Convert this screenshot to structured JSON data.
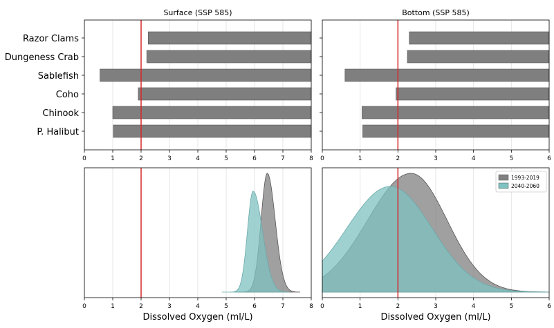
{
  "chart_data": [
    {
      "type": "bar",
      "orientation": "horizontal",
      "title": "Surface (SSP 585)",
      "categories": [
        "Razor Clams",
        "Dungeness Crab",
        "Sablefish",
        "Coho",
        "Chinook",
        "P. Halibut"
      ],
      "series": [
        {
          "values": [
            2.25,
            2.2,
            0.55,
            1.9,
            1.0,
            1.02
          ],
          "note_end": 8
        }
      ],
      "bar_start": [
        2.25,
        2.2,
        0.55,
        1.9,
        1.0,
        1.02
      ],
      "bar_end": [
        8,
        8,
        8,
        8,
        8,
        8
      ],
      "xlim": [
        0,
        8
      ],
      "xticks": [
        "0",
        "1",
        "2",
        "3",
        "4",
        "5",
        "6",
        "7",
        "8"
      ],
      "threshold": 2,
      "colors": {
        "bar": "#7f7f7f",
        "threshold": "#d62728"
      },
      "grid": true
    },
    {
      "type": "bar",
      "orientation": "horizontal",
      "title": "Bottom (SSP 585)",
      "categories": [
        "Razor Clams",
        "Dungeness Crab",
        "Sablefish",
        "Coho",
        "Chinook",
        "P. Halibut"
      ],
      "bar_start": [
        2.3,
        2.25,
        0.6,
        1.95,
        1.05,
        1.07
      ],
      "bar_end": [
        6,
        6,
        6,
        6,
        6,
        6
      ],
      "xlim": [
        0,
        6
      ],
      "xticks": [
        "0",
        "1",
        "2",
        "3",
        "4",
        "5",
        "6"
      ],
      "threshold": 2,
      "colors": {
        "bar": "#7f7f7f",
        "threshold": "#d62728"
      },
      "grid": true
    },
    {
      "type": "area",
      "xlabel": "Dissolved Oxygen (ml/L)",
      "xlim": [
        0,
        8
      ],
      "xticks": [
        "0",
        "1",
        "2",
        "3",
        "4",
        "5",
        "6",
        "7",
        "8"
      ],
      "threshold": 2,
      "series": [
        {
          "mode": 6.45,
          "left_sd": 0.22,
          "right_sd": 0.28,
          "peak": 1.0,
          "lo": 5.3,
          "hi": 7.6,
          "color": "#808080"
        },
        {
          "mode": 5.95,
          "left_sd": 0.2,
          "right_sd": 0.33,
          "peak": 0.85,
          "lo": 4.85,
          "hi": 7.2,
          "color": "#7fc2c2"
        }
      ],
      "grid": true
    },
    {
      "type": "area",
      "xlabel": "Dissolved Oxygen (ml/L)",
      "xlim": [
        0,
        6
      ],
      "xticks": [
        "0",
        "1",
        "2",
        "3",
        "4",
        "5",
        "6"
      ],
      "threshold": 2,
      "legend": {
        "position": "top-right",
        "entries": [
          "1993-2019",
          "2040-2060"
        ]
      },
      "series": [
        {
          "name": "1993-2019",
          "mode": 2.35,
          "left_sd": 1.15,
          "right_sd": 0.95,
          "peak": 1.0,
          "lo": 0,
          "hi": 6,
          "color": "#808080"
        },
        {
          "name": "2040-2060",
          "mode": 1.8,
          "left_sd": 1.15,
          "right_sd": 1.1,
          "peak": 0.89,
          "lo": 0,
          "hi": 6,
          "color": "#7fc2c2"
        }
      ],
      "grid": true
    }
  ]
}
